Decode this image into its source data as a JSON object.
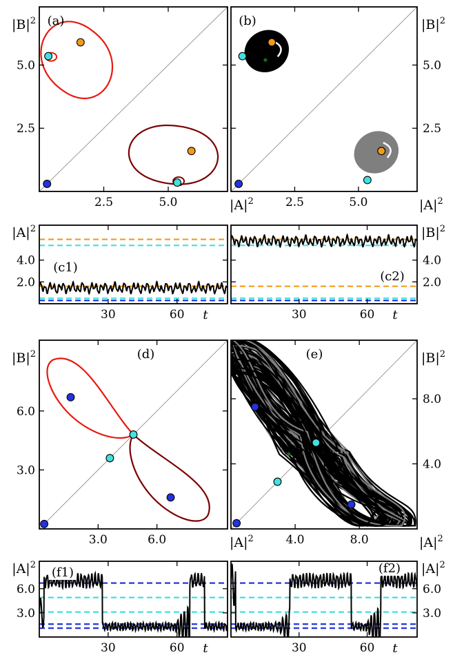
{
  "colors": {
    "stable_orbit_1": "#e8190f",
    "stable_orbit_2": "#7a0000",
    "attractor": "#000000",
    "attractor_shadow": "#7f7f7f",
    "diagonal": "#9a9a9a",
    "fixed_blue": "#2233dd",
    "fixed_cyan": "#44e0e0",
    "fixed_orange": "#f29a1c",
    "green_marker": "#1a6b1a",
    "dash_orange": "#f29a1c",
    "dash_cyan": "#44dede",
    "dash_blue": "#2233dd"
  },
  "chart_data": [
    {
      "panel": "a",
      "type": "scatter",
      "label": "(a)",
      "xlabel": "|A|²",
      "ylabel": "|B|²",
      "xlim": [
        0,
        7.3
      ],
      "ylim": [
        0,
        7.3
      ],
      "xticks": [
        2.5,
        5.0
      ],
      "yticks": [
        2.5,
        5.0
      ],
      "xticklabels": [
        "2.5",
        "5.0"
      ],
      "yticklabels": [
        "2.5",
        "5.0"
      ],
      "ylabel_side": "left",
      "points": [
        {
          "x": 0.3,
          "y": 0.3,
          "color": "blue"
        },
        {
          "x": 0.35,
          "y": 5.35,
          "color": "cyan"
        },
        {
          "x": 5.35,
          "y": 0.35,
          "color": "cyan"
        },
        {
          "x": 1.6,
          "y": 5.9,
          "color": "orange"
        },
        {
          "x": 5.9,
          "y": 1.6,
          "color": "orange"
        }
      ],
      "orbits": [
        {
          "color": "red",
          "shape": "loop",
          "cx": 1.45,
          "cy": 5.2,
          "rx": 1.3,
          "ry": 1.55
        },
        {
          "color": "darkred",
          "shape": "loop",
          "cx": 5.2,
          "cy": 1.45,
          "rx": 1.55,
          "ry": 1.3
        }
      ]
    },
    {
      "panel": "b",
      "type": "scatter",
      "label": "(b)",
      "xlabel": "|A|²",
      "ylabel": "|B|²",
      "xlim": [
        0,
        7.3
      ],
      "ylim": [
        0,
        7.3
      ],
      "xticks": [
        2.5,
        5.0
      ],
      "yticks": [
        2.5,
        5.0
      ],
      "xticklabels": [
        "2.5",
        "5.0"
      ],
      "yticklabels": [
        "2.5",
        "5.0"
      ],
      "ylabel_side": "right",
      "points": [
        {
          "x": 0.3,
          "y": 0.3,
          "color": "blue"
        },
        {
          "x": 0.45,
          "y": 5.35,
          "color": "cyan"
        },
        {
          "x": 5.35,
          "y": 0.45,
          "color": "cyan"
        },
        {
          "x": 1.6,
          "y": 5.9,
          "color": "orange"
        },
        {
          "x": 5.9,
          "y": 1.6,
          "color": "orange"
        }
      ],
      "basins": [
        {
          "color": "black",
          "cx": 1.4,
          "cy": 5.55,
          "rx": 0.85,
          "ry": 0.85
        },
        {
          "color": "gray",
          "cx": 5.7,
          "cy": 1.55,
          "rx": 0.85,
          "ry": 0.85
        }
      ],
      "green_markers": [
        {
          "x": 1.35,
          "y": 5.2
        }
      ]
    },
    {
      "panel": "c1",
      "type": "line",
      "label": "(c1)",
      "xlabel": "t",
      "ylabel": "|A|²",
      "xlim": [
        0,
        82
      ],
      "ylim": [
        0,
        7.2
      ],
      "xticks": [
        30,
        60
      ],
      "yticks": [
        2.0,
        4.0
      ],
      "xticklabels": [
        "30",
        "60"
      ],
      "yticklabels": [
        "2.0",
        "4.0"
      ],
      "ylabel_side": "left",
      "hlines": [
        {
          "y": 5.9,
          "color": "orange"
        },
        {
          "y": 5.35,
          "color": "cyan"
        },
        {
          "y": 1.6,
          "color": "orange"
        },
        {
          "y": 0.5,
          "color": "cyan"
        },
        {
          "y": 0.3,
          "color": "blue"
        }
      ],
      "signal": {
        "base": 1.45,
        "amp": 0.42
      }
    },
    {
      "panel": "c2",
      "type": "line",
      "label": "(c2)",
      "xlabel": "t",
      "ylabel": "|B|²",
      "xlim": [
        0,
        82
      ],
      "ylim": [
        0,
        7.2
      ],
      "xticks": [
        30,
        60
      ],
      "yticks": [
        2.0,
        4.0
      ],
      "xticklabels": [
        "30",
        "60"
      ],
      "yticklabels": [
        "2.0",
        "4.0"
      ],
      "ylabel_side": "right",
      "hlines": [
        {
          "y": 5.9,
          "color": "orange"
        },
        {
          "y": 5.35,
          "color": "cyan"
        },
        {
          "y": 1.6,
          "color": "orange"
        },
        {
          "y": 0.5,
          "color": "cyan"
        },
        {
          "y": 0.3,
          "color": "blue"
        }
      ],
      "signal": {
        "base": 5.75,
        "amp": 0.42
      }
    },
    {
      "panel": "d",
      "type": "scatter",
      "label": "(d)",
      "xlabel": "|A|²",
      "ylabel": "|B|²",
      "xlim": [
        0,
        9.6
      ],
      "ylim": [
        0,
        9.6
      ],
      "xticks": [
        3.0,
        6.0
      ],
      "yticks": [
        3.0,
        6.0
      ],
      "xticklabels": [
        "3.0",
        "6.0"
      ],
      "yticklabels": [
        "3.0",
        "6.0"
      ],
      "ylabel_side": "left",
      "points": [
        {
          "x": 0.25,
          "y": 0.25,
          "color": "blue"
        },
        {
          "x": 1.6,
          "y": 6.7,
          "color": "blue"
        },
        {
          "x": 6.7,
          "y": 1.6,
          "color": "blue"
        },
        {
          "x": 3.6,
          "y": 3.6,
          "color": "cyan"
        },
        {
          "x": 4.8,
          "y": 4.8,
          "color": "cyan"
        }
      ],
      "orbits": [
        {
          "color": "red",
          "shape": "lobe_upper"
        },
        {
          "color": "darkred",
          "shape": "lobe_lower"
        }
      ]
    },
    {
      "panel": "e",
      "type": "scatter",
      "label": "(e)",
      "xlabel": "|A|²",
      "ylabel": "|B|²",
      "xlim": [
        0,
        11.6
      ],
      "ylim": [
        0,
        11.6
      ],
      "xticks": [
        4.0,
        8.0
      ],
      "yticks": [
        4.0,
        8.0
      ],
      "xticklabels": [
        "4.0",
        "8.0"
      ],
      "yticklabels": [
        "4.0",
        "8.0"
      ],
      "ylabel_side": "right",
      "points": [
        {
          "x": 0.35,
          "y": 0.35,
          "color": "blue"
        },
        {
          "x": 1.5,
          "y": 7.5,
          "color": "blue"
        },
        {
          "x": 7.5,
          "y": 1.5,
          "color": "blue"
        },
        {
          "x": 2.9,
          "y": 2.9,
          "color": "cyan"
        },
        {
          "x": 5.3,
          "y": 5.3,
          "color": "cyan"
        }
      ],
      "green_markers": [
        {
          "x": 3.6,
          "y": 4.6
        }
      ]
    },
    {
      "panel": "f1",
      "type": "line",
      "label": "(f1)",
      "xlabel": "t",
      "ylabel": "|A|²",
      "xlim": [
        0,
        82
      ],
      "ylim": [
        0,
        9.4
      ],
      "xticks": [
        30,
        60
      ],
      "yticks": [
        3.0,
        6.0
      ],
      "xticklabels": [
        "30",
        "60"
      ],
      "yticklabels": [
        "3.0",
        "6.0"
      ],
      "ylabel_side": "left",
      "hlines": [
        {
          "y": 6.7,
          "color": "blue"
        },
        {
          "y": 4.9,
          "color": "cyan"
        },
        {
          "y": 3.1,
          "color": "cyan"
        },
        {
          "y": 1.6,
          "color": "blue"
        },
        {
          "y": 1.1,
          "color": "blue"
        }
      ],
      "signal": {
        "mode": "switch",
        "high": 7.0,
        "low": 1.3
      }
    },
    {
      "panel": "f2",
      "type": "line",
      "label": "(f2)",
      "xlabel": "t",
      "ylabel": "|A|²",
      "xlim": [
        0,
        82
      ],
      "ylim": [
        0,
        9.4
      ],
      "xticks": [
        30,
        60
      ],
      "yticks": [
        3.0,
        6.0
      ],
      "xticklabels": [
        "30",
        "60"
      ],
      "yticklabels": [
        "3.0",
        "6.0"
      ],
      "ylabel_side": "right",
      "hlines": [
        {
          "y": 6.7,
          "color": "blue"
        },
        {
          "y": 4.9,
          "color": "cyan"
        },
        {
          "y": 3.1,
          "color": "cyan"
        },
        {
          "y": 1.6,
          "color": "blue"
        },
        {
          "y": 1.1,
          "color": "blue"
        }
      ],
      "signal": {
        "mode": "switch2",
        "high": 7.0,
        "low": 1.3
      }
    }
  ]
}
